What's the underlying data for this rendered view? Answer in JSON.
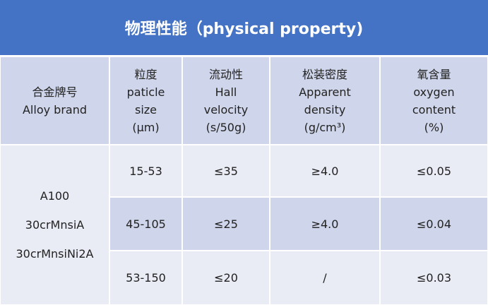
{
  "title": "物理性能（physical property)",
  "table": {
    "header": [
      [
        "合金牌号",
        "Alloy brand"
      ],
      [
        "粒度",
        "paticle",
        "size",
        "(μm)"
      ],
      [
        "流动性",
        "Hall",
        "velocity",
        "(s/50g)"
      ],
      [
        "松装密度",
        "Apparent",
        "density",
        "(g/cm³)"
      ],
      [
        "氧含量",
        "oxygen",
        "content",
        "(%)"
      ]
    ],
    "brands": [
      "A100",
      "30crMnsiA",
      "30crMnsiNi2A"
    ],
    "rows": [
      [
        "15-53",
        "≤35",
        "≥4.0",
        "≤0.05"
      ],
      [
        "45-105",
        "≤25",
        "≥4.0",
        "≤0.04"
      ],
      [
        "53-150",
        "≤20",
        "/",
        "≤0.03"
      ]
    ]
  }
}
